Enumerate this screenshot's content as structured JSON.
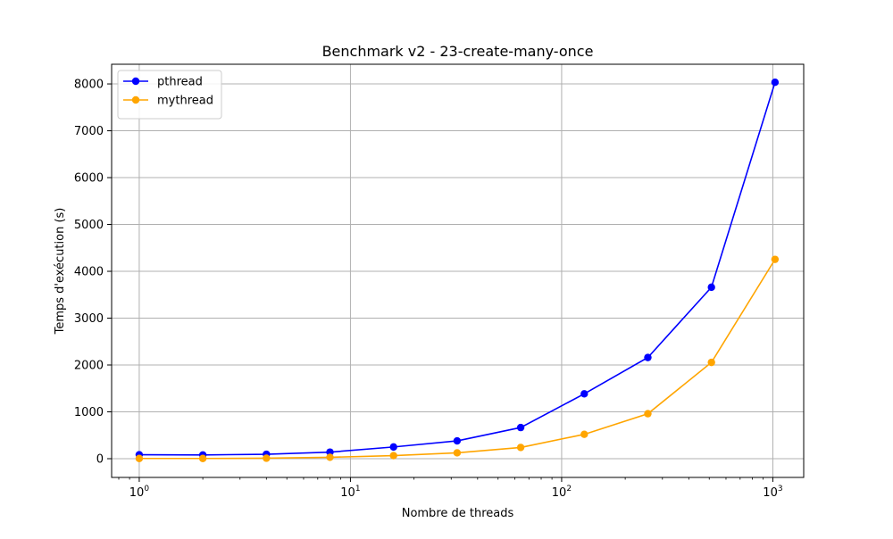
{
  "chart_data": {
    "type": "line",
    "title": "Benchmark v2 - 23-create-many-once",
    "xlabel": "Nombre de threads",
    "ylabel": "Temps d'exécution (s)",
    "xscale": "log",
    "xlim": [
      0.74,
      1400
    ],
    "ylim": [
      -400,
      8420
    ],
    "grid": true,
    "legend_position": "top-left",
    "x": [
      1,
      2,
      4,
      8,
      16,
      32,
      64,
      128,
      256,
      512,
      1024
    ],
    "x_ticks": [
      {
        "value": 1,
        "base": "10",
        "exp": "0"
      },
      {
        "value": 10,
        "base": "10",
        "exp": "1"
      },
      {
        "value": 100,
        "base": "10",
        "exp": "2"
      },
      {
        "value": 1000,
        "base": "10",
        "exp": "3"
      }
    ],
    "y_ticks": [
      0,
      1000,
      2000,
      3000,
      4000,
      5000,
      6000,
      7000,
      8000
    ],
    "y_tick_labels": [
      "0",
      "1000",
      "2000",
      "3000",
      "4000",
      "5000",
      "6000",
      "7000",
      "8000"
    ],
    "series": [
      {
        "name": "pthread",
        "color": "#0000ff",
        "marker": "circle",
        "values": [
          85,
          80,
          95,
          140,
          250,
          380,
          665,
          1385,
          2160,
          3660,
          8035
        ]
      },
      {
        "name": "mythread",
        "color": "#ffa500",
        "marker": "circle",
        "values": [
          5,
          5,
          10,
          30,
          65,
          125,
          240,
          520,
          960,
          2055,
          4255
        ]
      }
    ]
  }
}
